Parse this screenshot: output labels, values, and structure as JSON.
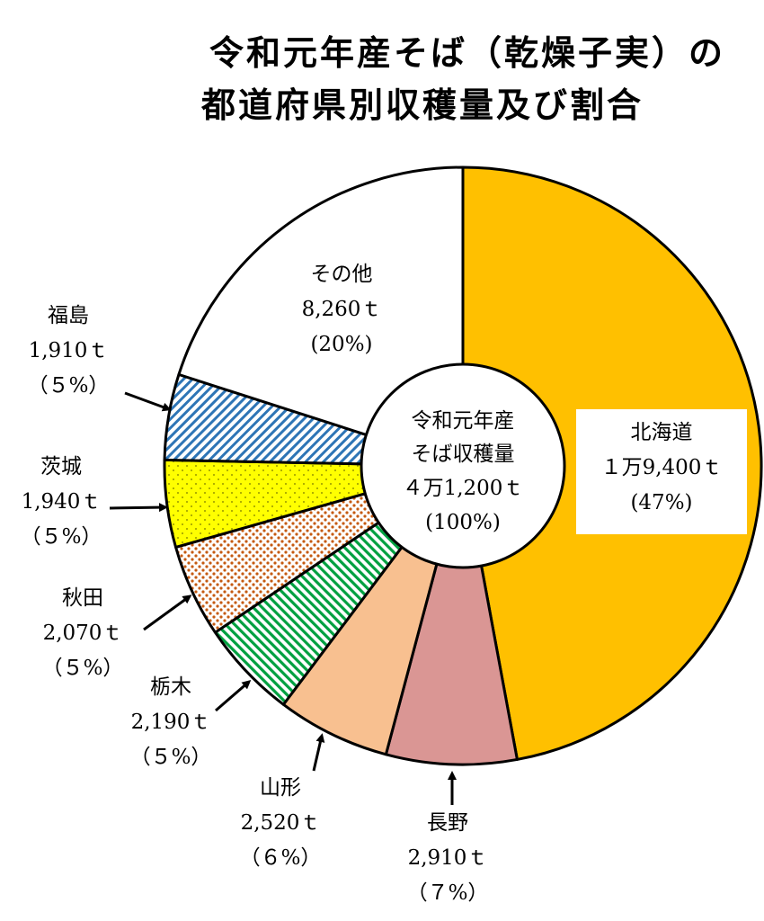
{
  "chart_data": {
    "type": "pie",
    "title_lines": [
      "令和元年産そば（乾燥子実）の",
      "都道府県別収穫量及び割合"
    ],
    "center_label": [
      "令和元年産",
      "そば収穫量",
      "４万1,200ｔ",
      "(100%)"
    ],
    "slices": [
      {
        "name": "北海道",
        "value": 19400,
        "value_text": "１万9,400ｔ",
        "pct": 47,
        "pct_text": "(47%)",
        "color": "#ffc000",
        "pattern": "solid"
      },
      {
        "name": "長野",
        "value": 2910,
        "value_text": "2,910ｔ",
        "pct": 7,
        "pct_text": "（７%）",
        "color": "#da9694",
        "pattern": "solid"
      },
      {
        "name": "山形",
        "value": 2520,
        "value_text": "2,520ｔ",
        "pct": 6,
        "pct_text": "（６%）",
        "color": "#f8c090",
        "pattern": "solid"
      },
      {
        "name": "栃木",
        "value": 2190,
        "value_text": "2,190ｔ",
        "pct": 5,
        "pct_text": "（５%）",
        "color": "#00a040",
        "pattern": "diag-green"
      },
      {
        "name": "秋田",
        "value": 2070,
        "value_text": "2,070ｔ",
        "pct": 5,
        "pct_text": "（５%）",
        "color": "#c55a11",
        "pattern": "dots-brown"
      },
      {
        "name": "茨城",
        "value": 1940,
        "value_text": "1,940ｔ",
        "pct": 5,
        "pct_text": "（５%）",
        "color": "#ffff00",
        "pattern": "dots-yellow"
      },
      {
        "name": "福島",
        "value": 1910,
        "value_text": "1,910ｔ",
        "pct": 5,
        "pct_text": "（５%）",
        "color": "#2e75b6",
        "pattern": "diag-blue"
      },
      {
        "name": "その他",
        "value": 8260,
        "value_text": "8,260ｔ",
        "pct": 20,
        "pct_text": "(20%)",
        "color": "#ffffff",
        "pattern": "solid"
      }
    ]
  }
}
